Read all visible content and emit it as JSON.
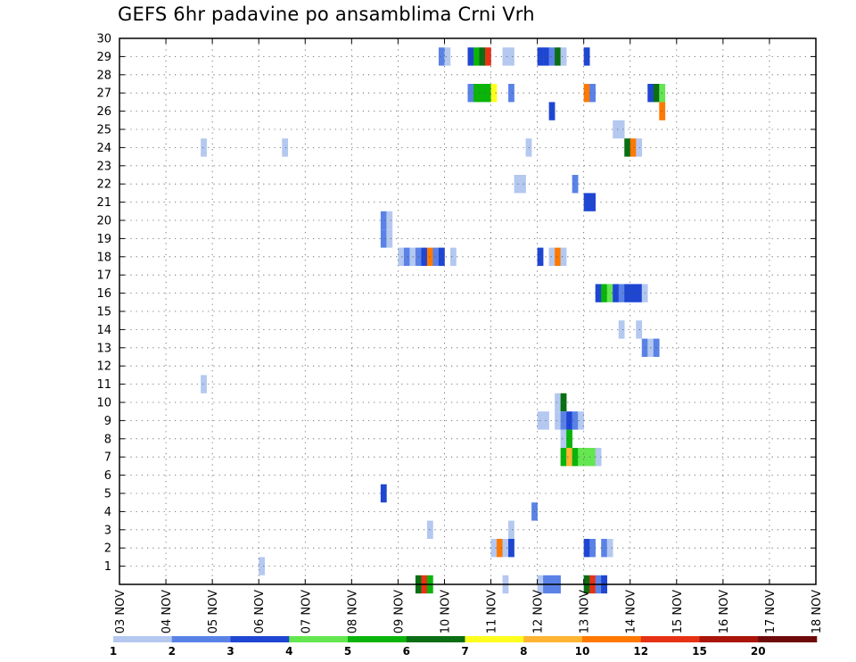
{
  "chart_data": {
    "type": "heatmap",
    "title": "GEFS 6hr padavine po ansamblima Crni Vrh",
    "x_tick_labels": [
      "03 NOV",
      "04 NOV",
      "05 NOV",
      "06 NOV",
      "07 NOV",
      "08 NOV",
      "09 NOV",
      "10 NOV",
      "11 NOV",
      "12 NOV",
      "13 NOV",
      "14 NOV",
      "15 NOV",
      "16 NOV",
      "17 NOV",
      "18 NOV"
    ],
    "y_tick_labels": [
      "1",
      "2",
      "3",
      "4",
      "5",
      "6",
      "7",
      "8",
      "9",
      "10",
      "11",
      "12",
      "13",
      "14",
      "15",
      "16",
      "17",
      "18",
      "19",
      "20",
      "21",
      "22",
      "23",
      "24",
      "25",
      "26",
      "27",
      "28",
      "29",
      "30"
    ],
    "ylim": [
      0,
      30
    ],
    "x_range_steps": [
      0,
      60
    ],
    "step_hours": 6,
    "grid": true,
    "legend": {
      "placement": "bottom",
      "colors": [
        "#b4c8f0",
        "#5a82e6",
        "#1e46d2",
        "#64e650",
        "#0ab40a",
        "#0a6e14",
        "#ffff1e",
        "#ffb432",
        "#ff7800",
        "#e63214",
        "#aa140a",
        "#6e0a0a"
      ],
      "labels": [
        "1",
        "2",
        "3",
        "4",
        "5",
        "6",
        "7",
        "8",
        "10",
        "12",
        "15",
        "20"
      ]
    },
    "cells": [
      {
        "member": 29,
        "step": 27.5,
        "cat": 2
      },
      {
        "member": 29,
        "step": 28,
        "cat": 1
      },
      {
        "member": 29,
        "step": 30,
        "cat": 3
      },
      {
        "member": 29,
        "step": 30.5,
        "cat": 5
      },
      {
        "member": 29,
        "step": 31,
        "cat": 6
      },
      {
        "member": 29,
        "step": 31.5,
        "cat": 10
      },
      {
        "member": 29,
        "step": 33,
        "cat": 1
      },
      {
        "member": 29,
        "step": 33.5,
        "cat": 1
      },
      {
        "member": 29,
        "step": 36,
        "cat": 3
      },
      {
        "member": 29,
        "step": 36.5,
        "cat": 3
      },
      {
        "member": 29,
        "step": 37,
        "cat": 2
      },
      {
        "member": 29,
        "step": 37.5,
        "cat": 6
      },
      {
        "member": 29,
        "step": 38,
        "cat": 1
      },
      {
        "member": 29,
        "step": 40,
        "cat": 3
      },
      {
        "member": 27,
        "step": 30,
        "cat": 2
      },
      {
        "member": 27,
        "step": 30.5,
        "cat": 5
      },
      {
        "member": 27,
        "step": 31,
        "cat": 5
      },
      {
        "member": 27,
        "step": 31.5,
        "cat": 5
      },
      {
        "member": 27,
        "step": 32,
        "cat": 7
      },
      {
        "member": 27,
        "step": 33.5,
        "cat": 2
      },
      {
        "member": 27,
        "step": 40,
        "cat": 9
      },
      {
        "member": 27,
        "step": 40.5,
        "cat": 2
      },
      {
        "member": 27,
        "step": 45.5,
        "cat": 3
      },
      {
        "member": 27,
        "step": 46,
        "cat": 6
      },
      {
        "member": 27,
        "step": 46.5,
        "cat": 4
      },
      {
        "member": 26,
        "step": 37,
        "cat": 3
      },
      {
        "member": 26,
        "step": 46.5,
        "cat": 9
      },
      {
        "member": 25,
        "step": 42.5,
        "cat": 1
      },
      {
        "member": 25,
        "step": 43,
        "cat": 1
      },
      {
        "member": 24,
        "step": 7,
        "cat": 1
      },
      {
        "member": 24,
        "step": 14,
        "cat": 1
      },
      {
        "member": 24,
        "step": 35,
        "cat": 1
      },
      {
        "member": 24,
        "step": 43.5,
        "cat": 6
      },
      {
        "member": 24,
        "step": 44,
        "cat": 9
      },
      {
        "member": 24,
        "step": 44.5,
        "cat": 1
      },
      {
        "member": 22,
        "step": 34,
        "cat": 1
      },
      {
        "member": 22,
        "step": 34.5,
        "cat": 1
      },
      {
        "member": 22,
        "step": 39,
        "cat": 2
      },
      {
        "member": 21,
        "step": 40,
        "cat": 3
      },
      {
        "member": 21,
        "step": 40.5,
        "cat": 3
      },
      {
        "member": 20,
        "step": 22.5,
        "cat": 2
      },
      {
        "member": 20,
        "step": 23,
        "cat": 1
      },
      {
        "member": 19,
        "step": 22.5,
        "cat": 2
      },
      {
        "member": 19,
        "step": 23,
        "cat": 1
      },
      {
        "member": 18,
        "step": 24,
        "cat": 1
      },
      {
        "member": 18,
        "step": 24.5,
        "cat": 2
      },
      {
        "member": 18,
        "step": 25,
        "cat": 1
      },
      {
        "member": 18,
        "step": 25.5,
        "cat": 2
      },
      {
        "member": 18,
        "step": 26,
        "cat": 3
      },
      {
        "member": 18,
        "step": 26.5,
        "cat": 9
      },
      {
        "member": 18,
        "step": 27,
        "cat": 2
      },
      {
        "member": 18,
        "step": 27.5,
        "cat": 3
      },
      {
        "member": 18,
        "step": 28.5,
        "cat": 1
      },
      {
        "member": 18,
        "step": 36,
        "cat": 3
      },
      {
        "member": 18,
        "step": 37,
        "cat": 1
      },
      {
        "member": 18,
        "step": 37.5,
        "cat": 9
      },
      {
        "member": 18,
        "step": 38,
        "cat": 1
      },
      {
        "member": 16,
        "step": 41,
        "cat": 3
      },
      {
        "member": 16,
        "step": 41.5,
        "cat": 5
      },
      {
        "member": 16,
        "step": 42,
        "cat": 4
      },
      {
        "member": 16,
        "step": 42.5,
        "cat": 3
      },
      {
        "member": 16,
        "step": 43,
        "cat": 2
      },
      {
        "member": 16,
        "step": 43.5,
        "cat": 3
      },
      {
        "member": 16,
        "step": 44,
        "cat": 3
      },
      {
        "member": 16,
        "step": 44.5,
        "cat": 3
      },
      {
        "member": 16,
        "step": 45,
        "cat": 1
      },
      {
        "member": 14,
        "step": 43,
        "cat": 1
      },
      {
        "member": 14,
        "step": 44.5,
        "cat": 1
      },
      {
        "member": 13,
        "step": 45,
        "cat": 2
      },
      {
        "member": 13,
        "step": 45.5,
        "cat": 1
      },
      {
        "member": 13,
        "step": 46,
        "cat": 2
      },
      {
        "member": 11,
        "step": 7,
        "cat": 1
      },
      {
        "member": 10,
        "step": 37.5,
        "cat": 1
      },
      {
        "member": 10,
        "step": 38,
        "cat": 6
      },
      {
        "member": 9,
        "step": 36,
        "cat": 1
      },
      {
        "member": 9,
        "step": 36.5,
        "cat": 1
      },
      {
        "member": 9,
        "step": 37.5,
        "cat": 1
      },
      {
        "member": 9,
        "step": 38,
        "cat": 2
      },
      {
        "member": 9,
        "step": 38.5,
        "cat": 3
      },
      {
        "member": 9,
        "step": 39,
        "cat": 2
      },
      {
        "member": 9,
        "step": 39.5,
        "cat": 1
      },
      {
        "member": 8,
        "step": 38,
        "cat": 1
      },
      {
        "member": 8,
        "step": 38.5,
        "cat": 5
      },
      {
        "member": 7,
        "step": 38,
        "cat": 5
      },
      {
        "member": 7,
        "step": 38.5,
        "cat": 8
      },
      {
        "member": 7,
        "step": 39,
        "cat": 5
      },
      {
        "member": 7,
        "step": 39.5,
        "cat": 4
      },
      {
        "member": 7,
        "step": 40,
        "cat": 4
      },
      {
        "member": 7,
        "step": 40.5,
        "cat": 4
      },
      {
        "member": 7,
        "step": 41,
        "cat": 1
      },
      {
        "member": 5,
        "step": 22.5,
        "cat": 3
      },
      {
        "member": 4,
        "step": 35.5,
        "cat": 2
      },
      {
        "member": 3,
        "step": 26.5,
        "cat": 1
      },
      {
        "member": 3,
        "step": 33.5,
        "cat": 1
      },
      {
        "member": 2,
        "step": 32,
        "cat": 1
      },
      {
        "member": 2,
        "step": 32.5,
        "cat": 9
      },
      {
        "member": 2,
        "step": 33,
        "cat": 1
      },
      {
        "member": 2,
        "step": 33.5,
        "cat": 3
      },
      {
        "member": 2,
        "step": 40,
        "cat": 3
      },
      {
        "member": 2,
        "step": 40.5,
        "cat": 2
      },
      {
        "member": 2,
        "step": 41.5,
        "cat": 2
      },
      {
        "member": 2,
        "step": 42,
        "cat": 1
      },
      {
        "member": 1,
        "step": 12,
        "cat": 1
      },
      {
        "member": 0,
        "step": 25.5,
        "cat": 6
      },
      {
        "member": 0,
        "step": 26,
        "cat": 10
      },
      {
        "member": 0,
        "step": 26.5,
        "cat": 5
      },
      {
        "member": 0,
        "step": 33,
        "cat": 1
      },
      {
        "member": 0,
        "step": 36,
        "cat": 1
      },
      {
        "member": 0,
        "step": 36.5,
        "cat": 2
      },
      {
        "member": 0,
        "step": 37,
        "cat": 2
      },
      {
        "member": 0,
        "step": 37.5,
        "cat": 2
      },
      {
        "member": 0,
        "step": 40,
        "cat": 6
      },
      {
        "member": 0,
        "step": 40.5,
        "cat": 10
      },
      {
        "member": 0,
        "step": 41,
        "cat": 2
      },
      {
        "member": 0,
        "step": 41.5,
        "cat": 3
      }
    ]
  }
}
